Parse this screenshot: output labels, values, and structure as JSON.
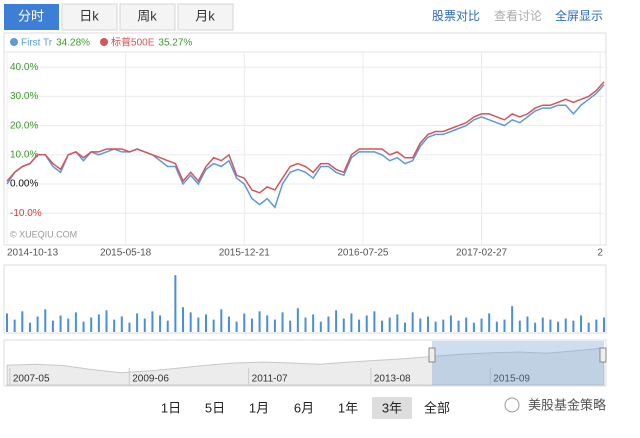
{
  "tabs": [
    "分时",
    "日k",
    "周k",
    "月k"
  ],
  "links": [
    "股票对比",
    "查看讨论",
    "全屏显示"
  ],
  "range_buttons": [
    "1日",
    "5日",
    "1月",
    "6月",
    "1年",
    "3年",
    "全部"
  ],
  "brand": "美股基金策略",
  "chart_data": [
    {
      "type": "line",
      "annotation": "© XUEQIU.COM",
      "series": [
        {
          "name": "First Tr",
          "legend_label": "34.28%",
          "color": "#5a9bd8",
          "values": [
            0,
            4,
            6,
            7,
            10,
            10,
            6,
            4,
            10,
            11,
            8,
            11,
            10,
            11,
            12,
            11,
            11,
            12,
            11,
            10,
            8,
            6,
            6,
            0,
            3,
            0,
            5,
            7,
            6,
            8,
            2,
            0,
            -5,
            -7,
            -5,
            -8,
            0,
            4,
            5,
            4,
            2,
            6,
            6,
            4,
            3,
            9,
            11,
            11,
            11,
            10,
            8,
            9,
            7,
            8,
            13,
            16,
            17,
            17,
            18,
            19,
            20,
            22,
            23,
            22,
            21,
            20,
            22,
            21,
            23,
            25,
            26,
            26,
            27,
            27,
            24,
            27,
            29,
            31,
            34
          ]
        },
        {
          "name": "标普500E",
          "legend_label": "35.27%",
          "color": "#d4555a",
          "values": [
            1,
            4,
            6,
            7,
            10,
            10,
            7,
            5,
            10,
            11,
            9,
            11,
            11,
            12,
            12,
            12,
            11,
            12,
            11,
            10,
            9,
            8,
            7,
            1,
            4,
            1,
            6,
            9,
            8,
            10,
            3,
            2,
            -2,
            -3,
            -1,
            -2,
            2,
            6,
            7,
            6,
            4,
            7,
            7,
            5,
            4,
            10,
            12,
            12,
            12,
            12,
            10,
            11,
            9,
            9,
            14,
            17,
            18,
            18,
            19,
            20,
            21,
            23,
            24,
            24,
            23,
            22,
            24,
            23,
            24,
            26,
            27,
            27,
            28,
            29,
            28,
            29,
            30,
            32,
            35
          ]
        }
      ],
      "xlim": [
        0,
        78
      ],
      "xticks": [
        {
          "value": 0,
          "label": "2014-10-13"
        },
        {
          "value": 15.5,
          "label": "2015-05-18"
        },
        {
          "value": 31,
          "label": "2015-12-21"
        },
        {
          "value": 46.5,
          "label": "2016-07-25"
        },
        {
          "value": 62,
          "label": "2017-02-27"
        },
        {
          "value": 77.5,
          "label": "2"
        }
      ],
      "ylim": [
        -20.2,
        43.5
      ],
      "yticks": [
        {
          "value": 40,
          "label": "40.0%"
        },
        {
          "value": 30,
          "label": "30.0%"
        },
        {
          "value": 20,
          "label": "20.0%"
        },
        {
          "value": 10,
          "label": "10.0%"
        },
        {
          "value": 0,
          "label": "0.00%"
        },
        {
          "value": -10,
          "label": "-10.0%"
        }
      ],
      "grid": true
    },
    {
      "type": "bar",
      "color": "#4a8fd6",
      "ylim": [
        0,
        60
      ],
      "values": [
        18,
        12,
        20,
        9,
        15,
        22,
        11,
        16,
        13,
        19,
        10,
        14,
        17,
        21,
        12,
        15,
        9,
        18,
        13,
        20,
        16,
        11,
        55,
        24,
        19,
        14,
        17,
        12,
        22,
        15,
        10,
        18,
        13,
        20,
        16,
        12,
        19,
        11,
        23,
        14,
        17,
        10,
        15,
        21,
        13,
        18,
        12,
        16,
        20,
        11,
        14,
        17,
        9,
        19,
        13,
        15,
        10,
        12,
        16,
        11,
        14,
        9,
        13,
        18,
        10,
        12,
        25,
        11,
        15,
        9,
        14,
        12,
        10,
        13,
        11,
        16,
        9,
        12,
        14
      ]
    },
    {
      "type": "area",
      "color": "#c8c8c8",
      "ylim": [
        0,
        100
      ],
      "xlim": [
        0,
        21
      ],
      "values": [
        45,
        47,
        44,
        35,
        28,
        32,
        38,
        45,
        50,
        52,
        50,
        47,
        52,
        56,
        60,
        65,
        70,
        73,
        75,
        72,
        78,
        84
      ],
      "xticks": [
        {
          "value": 0.1,
          "label": "2007-05"
        },
        {
          "value": 4.3,
          "label": "2009-06"
        },
        {
          "value": 8.5,
          "label": "2011-07"
        },
        {
          "value": 12.8,
          "label": "2013-08"
        },
        {
          "value": 17,
          "label": "2015-09"
        }
      ]
    }
  ]
}
